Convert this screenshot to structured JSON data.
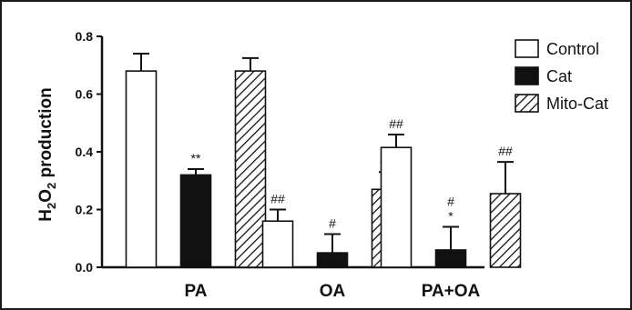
{
  "chart_data": {
    "type": "bar",
    "ylabel": {
      "main": "H",
      "sub1": "2",
      "mid": "O",
      "sub2": "2",
      "tail": " production"
    },
    "ylim": [
      0,
      0.8
    ],
    "yticks": [
      "0.0",
      "0.2",
      "0.4",
      "0.6",
      "0.8"
    ],
    "categories": [
      "PA",
      "OA",
      "PA+OA"
    ],
    "series": [
      {
        "name": "Control",
        "fill": "#ffffff",
        "pattern": "none",
        "values": [
          0.68,
          0.16,
          0.415
        ],
        "errors": [
          0.06,
          0.04,
          0.045
        ],
        "annotations": [
          "",
          "##",
          "##"
        ]
      },
      {
        "name": "Cat",
        "fill": "#111111",
        "pattern": "solid",
        "values": [
          0.32,
          0.05,
          0.06
        ],
        "errors": [
          0.02,
          0.065,
          0.08
        ],
        "annotations": [
          "**",
          "#",
          "#\n*"
        ]
      },
      {
        "name": "Mito-Cat",
        "fill": "#ffffff",
        "pattern": "hatch",
        "values": [
          0.68,
          0.27,
          0.255
        ],
        "errors": [
          0.045,
          0.06,
          0.11
        ],
        "annotations": [
          "",
          "##",
          "##"
        ]
      }
    ],
    "legend_position": "top-right",
    "grid": false
  }
}
